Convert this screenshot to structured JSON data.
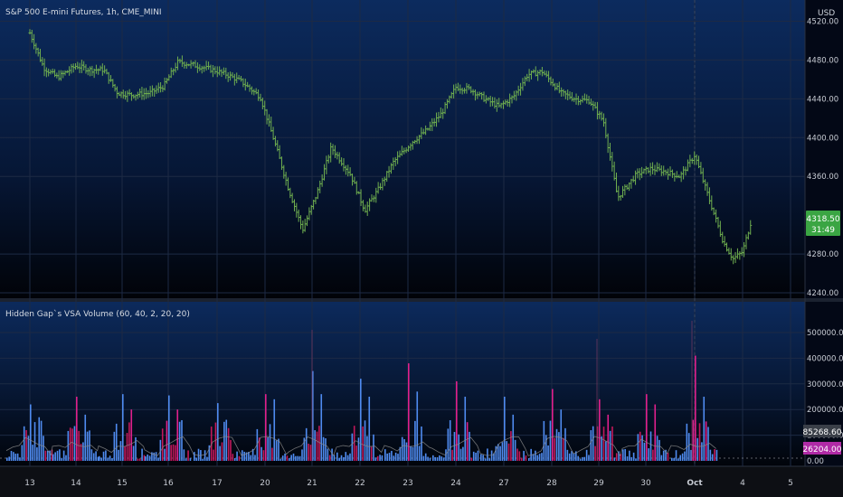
{
  "header": {
    "price_title": "S&P 500 E-mini Futures, 1h, CME_MINI",
    "indicator_title": "Hidden Gap`s VSA Volume (60, 40, 2, 20, 20)",
    "currency": "USD"
  },
  "price_axis": {
    "ticks": [
      "4520.00",
      "4480.00",
      "4440.00",
      "4400.00",
      "4360.00",
      "4280.00",
      "4240.00"
    ],
    "last_price": "4318.50",
    "countdown": "31:49"
  },
  "volume_axis": {
    "ticks": [
      "500000.00",
      "400000.00",
      "300000.00",
      "200000.00",
      "100000.00",
      "0.00"
    ],
    "ma_label": "85268.60",
    "last_label": "26204.00"
  },
  "time_axis": {
    "labels": [
      "13",
      "14",
      "15",
      "16",
      "17",
      "20",
      "21",
      "22",
      "23",
      "24",
      "27",
      "28",
      "29",
      "30",
      "Oct",
      "4",
      "5"
    ]
  },
  "colors": {
    "price_bar": "#6fae4f",
    "vol_up": "#4f8bf0",
    "vol_down": "#c2185b",
    "vol_climax": "#e0208c",
    "ma_line": "#8c8c8c",
    "last_price_bg": "#3aa543",
    "last_vol_bg": "#b02aa6"
  },
  "chart_data": [
    {
      "type": "line",
      "title": "S&P 500 E-mini Futures, 1h, CME_MINI",
      "series": [
        {
          "name": "",
          "x": [
            13,
            14,
            15,
            16,
            17,
            20,
            21,
            22,
            23,
            24,
            27,
            28,
            29,
            30,
            "Oct",
            4,
            5
          ],
          "points": [
            [
              0,
              4508
            ],
            [
              0.3,
              4472
            ],
            [
              0.6,
              4462
            ],
            [
              1.0,
              4474
            ],
            [
              1.3,
              4470
            ],
            [
              1.6,
              4470
            ],
            [
              1.9,
              4446
            ],
            [
              2.2,
              4444
            ],
            [
              2.6,
              4446
            ],
            [
              2.9,
              4453
            ],
            [
              3.2,
              4478
            ],
            [
              3.5,
              4475
            ],
            [
              3.9,
              4470
            ],
            [
              4.2,
              4465
            ],
            [
              4.5,
              4458
            ],
            [
              4.9,
              4442
            ],
            [
              5.2,
              4396
            ],
            [
              5.5,
              4347
            ],
            [
              5.8,
              4305
            ],
            [
              6.1,
              4342
            ],
            [
              6.4,
              4390
            ],
            [
              6.8,
              4362
            ],
            [
              7.1,
              4325
            ],
            [
              7.4,
              4348
            ],
            [
              7.7,
              4375
            ],
            [
              8.1,
              4396
            ],
            [
              8.4,
              4408
            ],
            [
              8.7,
              4425
            ],
            [
              9.0,
              4452
            ],
            [
              9.3,
              4450
            ],
            [
              9.6,
              4440
            ],
            [
              9.9,
              4432
            ],
            [
              10.2,
              4442
            ],
            [
              10.5,
              4465
            ],
            [
              10.8,
              4468
            ],
            [
              11.2,
              4446
            ],
            [
              11.5,
              4440
            ],
            [
              11.8,
              4438
            ],
            [
              12.1,
              4417
            ],
            [
              12.4,
              4338
            ],
            [
              12.8,
              4362
            ],
            [
              13.1,
              4368
            ],
            [
              13.4,
              4365
            ],
            [
              13.7,
              4360
            ],
            [
              14.0,
              4382
            ],
            [
              14.3,
              4337
            ],
            [
              14.6,
              4292
            ],
            [
              14.8,
              4275
            ],
            [
              15.0,
              4282
            ],
            [
              15.2,
              4318
            ]
          ]
        }
      ],
      "ylim": [
        4240,
        4520
      ],
      "yticks": [
        4240,
        4280,
        4360,
        4400,
        4440,
        4480,
        4520
      ],
      "last": 4318.5
    },
    {
      "type": "bar",
      "title": "Hidden Gap`s VSA Volume (60, 40, 2, 20, 20)",
      "ylim": [
        0,
        500000
      ],
      "yticks": [
        0,
        100000,
        200000,
        300000,
        400000,
        500000
      ],
      "ma_last": 85268.6,
      "last": 26204,
      "sessions": [
        {
          "label": "13",
          "peak": 220000,
          "second": 170000,
          "peak_color": "up"
        },
        {
          "label": "14",
          "peak": 250000,
          "second": 180000,
          "peak_color": "up"
        },
        {
          "label": "15",
          "peak": 260000,
          "second": 200000,
          "peak_color": "up"
        },
        {
          "label": "16",
          "peak": 255000,
          "second": 200000,
          "peak_color": "up"
        },
        {
          "label": "17",
          "peak": 225000,
          "second": 160000,
          "peak_color": "up"
        },
        {
          "label": "20",
          "peak": 260000,
          "second": 240000,
          "peak_color": "down"
        },
        {
          "label": "21",
          "peak": 350000,
          "second": 260000,
          "peak_color": "up"
        },
        {
          "label": "22",
          "peak": 320000,
          "second": 250000,
          "peak_color": "up"
        },
        {
          "label": "23",
          "peak": 380000,
          "second": 270000,
          "peak_color": "up"
        },
        {
          "label": "24",
          "peak": 310000,
          "second": 250000,
          "peak_color": "up"
        },
        {
          "label": "27",
          "peak": 250000,
          "second": 180000,
          "peak_color": "up"
        },
        {
          "label": "28",
          "peak": 280000,
          "second": 200000,
          "peak_color": "up"
        },
        {
          "label": "29",
          "peak": 240000,
          "second": 180000,
          "peak_color": "down"
        },
        {
          "label": "30",
          "peak": 260000,
          "second": 220000,
          "peak_color": "up"
        },
        {
          "label": "Oct",
          "peak": 410000,
          "second": 250000,
          "peak_color": "down"
        }
      ]
    }
  ]
}
